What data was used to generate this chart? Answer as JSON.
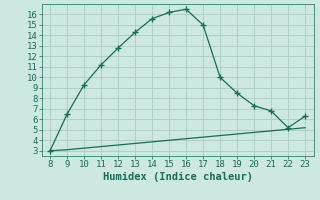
{
  "title": "",
  "xlabel": "Humidex (Indice chaleur)",
  "background_color": "#cce8e0",
  "line_color": "#1a6b5a",
  "grid_color": "#aaccc4",
  "x_main": [
    8,
    9,
    10,
    11,
    12,
    13,
    14,
    15,
    16,
    17,
    18,
    19,
    20,
    21,
    22,
    23
  ],
  "y_main": [
    3.0,
    6.5,
    9.3,
    11.2,
    12.8,
    14.3,
    15.6,
    16.2,
    16.5,
    15.0,
    10.0,
    8.5,
    7.3,
    6.8,
    5.2,
    6.3
  ],
  "x_line2": [
    8,
    9,
    10,
    11,
    12,
    13,
    14,
    15,
    16,
    17,
    18,
    19,
    20,
    21,
    22,
    23
  ],
  "y_line2": [
    3.0,
    3.1,
    3.25,
    3.4,
    3.55,
    3.7,
    3.85,
    4.0,
    4.15,
    4.3,
    4.45,
    4.6,
    4.75,
    4.9,
    5.05,
    5.2
  ],
  "xlim": [
    7.5,
    23.5
  ],
  "ylim": [
    2.5,
    17.0
  ],
  "yticks": [
    3,
    4,
    5,
    6,
    7,
    8,
    9,
    10,
    11,
    12,
    13,
    14,
    15,
    16
  ],
  "xticks": [
    8,
    9,
    10,
    11,
    12,
    13,
    14,
    15,
    16,
    17,
    18,
    19,
    20,
    21,
    22,
    23
  ],
  "tick_fontsize": 6.5,
  "xlabel_fontsize": 7.5
}
